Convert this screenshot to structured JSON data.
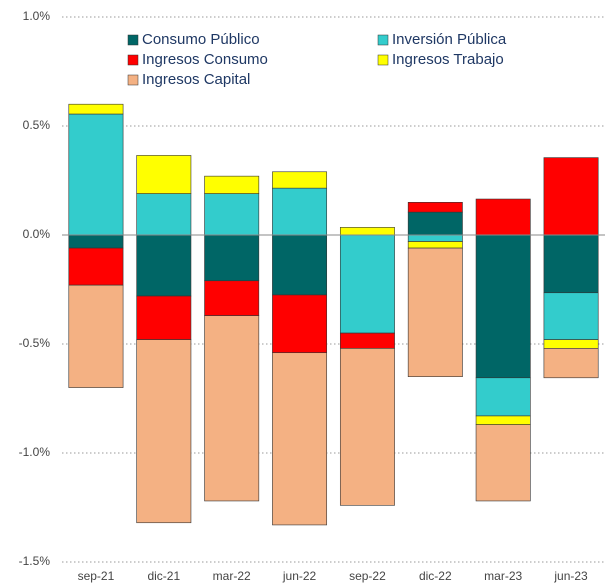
{
  "chart_data": {
    "type": "bar",
    "stacked": true,
    "categories": [
      "sep-21",
      "dic-21",
      "mar-22",
      "jun-22",
      "sep-22",
      "dic-22",
      "mar-23",
      "jun-23"
    ],
    "series": [
      {
        "name": "Consumo Público",
        "color": "#006666",
        "values": [
          -0.06,
          -0.28,
          -0.21,
          -0.275,
          0,
          0.105,
          -0.655,
          -0.265
        ]
      },
      {
        "name": "Inversión Pública",
        "color": "#33cccc",
        "values": [
          0.555,
          0.19,
          0.19,
          0.215,
          -0.45,
          -0.03,
          -0.175,
          -0.215
        ]
      },
      {
        "name": "Ingresos Consumo",
        "color": "#ff0000",
        "values": [
          -0.17,
          -0.2,
          -0.16,
          -0.265,
          -0.07,
          0.045,
          0.165,
          0.355
        ]
      },
      {
        "name": "Ingresos Trabajo",
        "color": "#ffff00",
        "values": [
          0.045,
          0.175,
          0.08,
          0.075,
          0.035,
          -0.03,
          -0.04,
          -0.04
        ]
      },
      {
        "name": "Ingresos Capital",
        "color": "#f4b183",
        "values": [
          -0.47,
          -0.84,
          -0.85,
          -0.79,
          -0.72,
          -0.59,
          -0.35,
          -0.135
        ]
      }
    ],
    "ylim": [
      -1.5,
      1.0
    ],
    "yticks": [
      {
        "value": -1.5,
        "label": "-1.5%"
      },
      {
        "value": -1.0,
        "label": "-1.0%"
      },
      {
        "value": -0.5,
        "label": "-0.5%"
      },
      {
        "value": 0,
        "label": "0.0%"
      },
      {
        "value": 0.5,
        "label": "0.5%"
      },
      {
        "value": 1.0,
        "label": "1.0%"
      }
    ],
    "grid": true
  }
}
